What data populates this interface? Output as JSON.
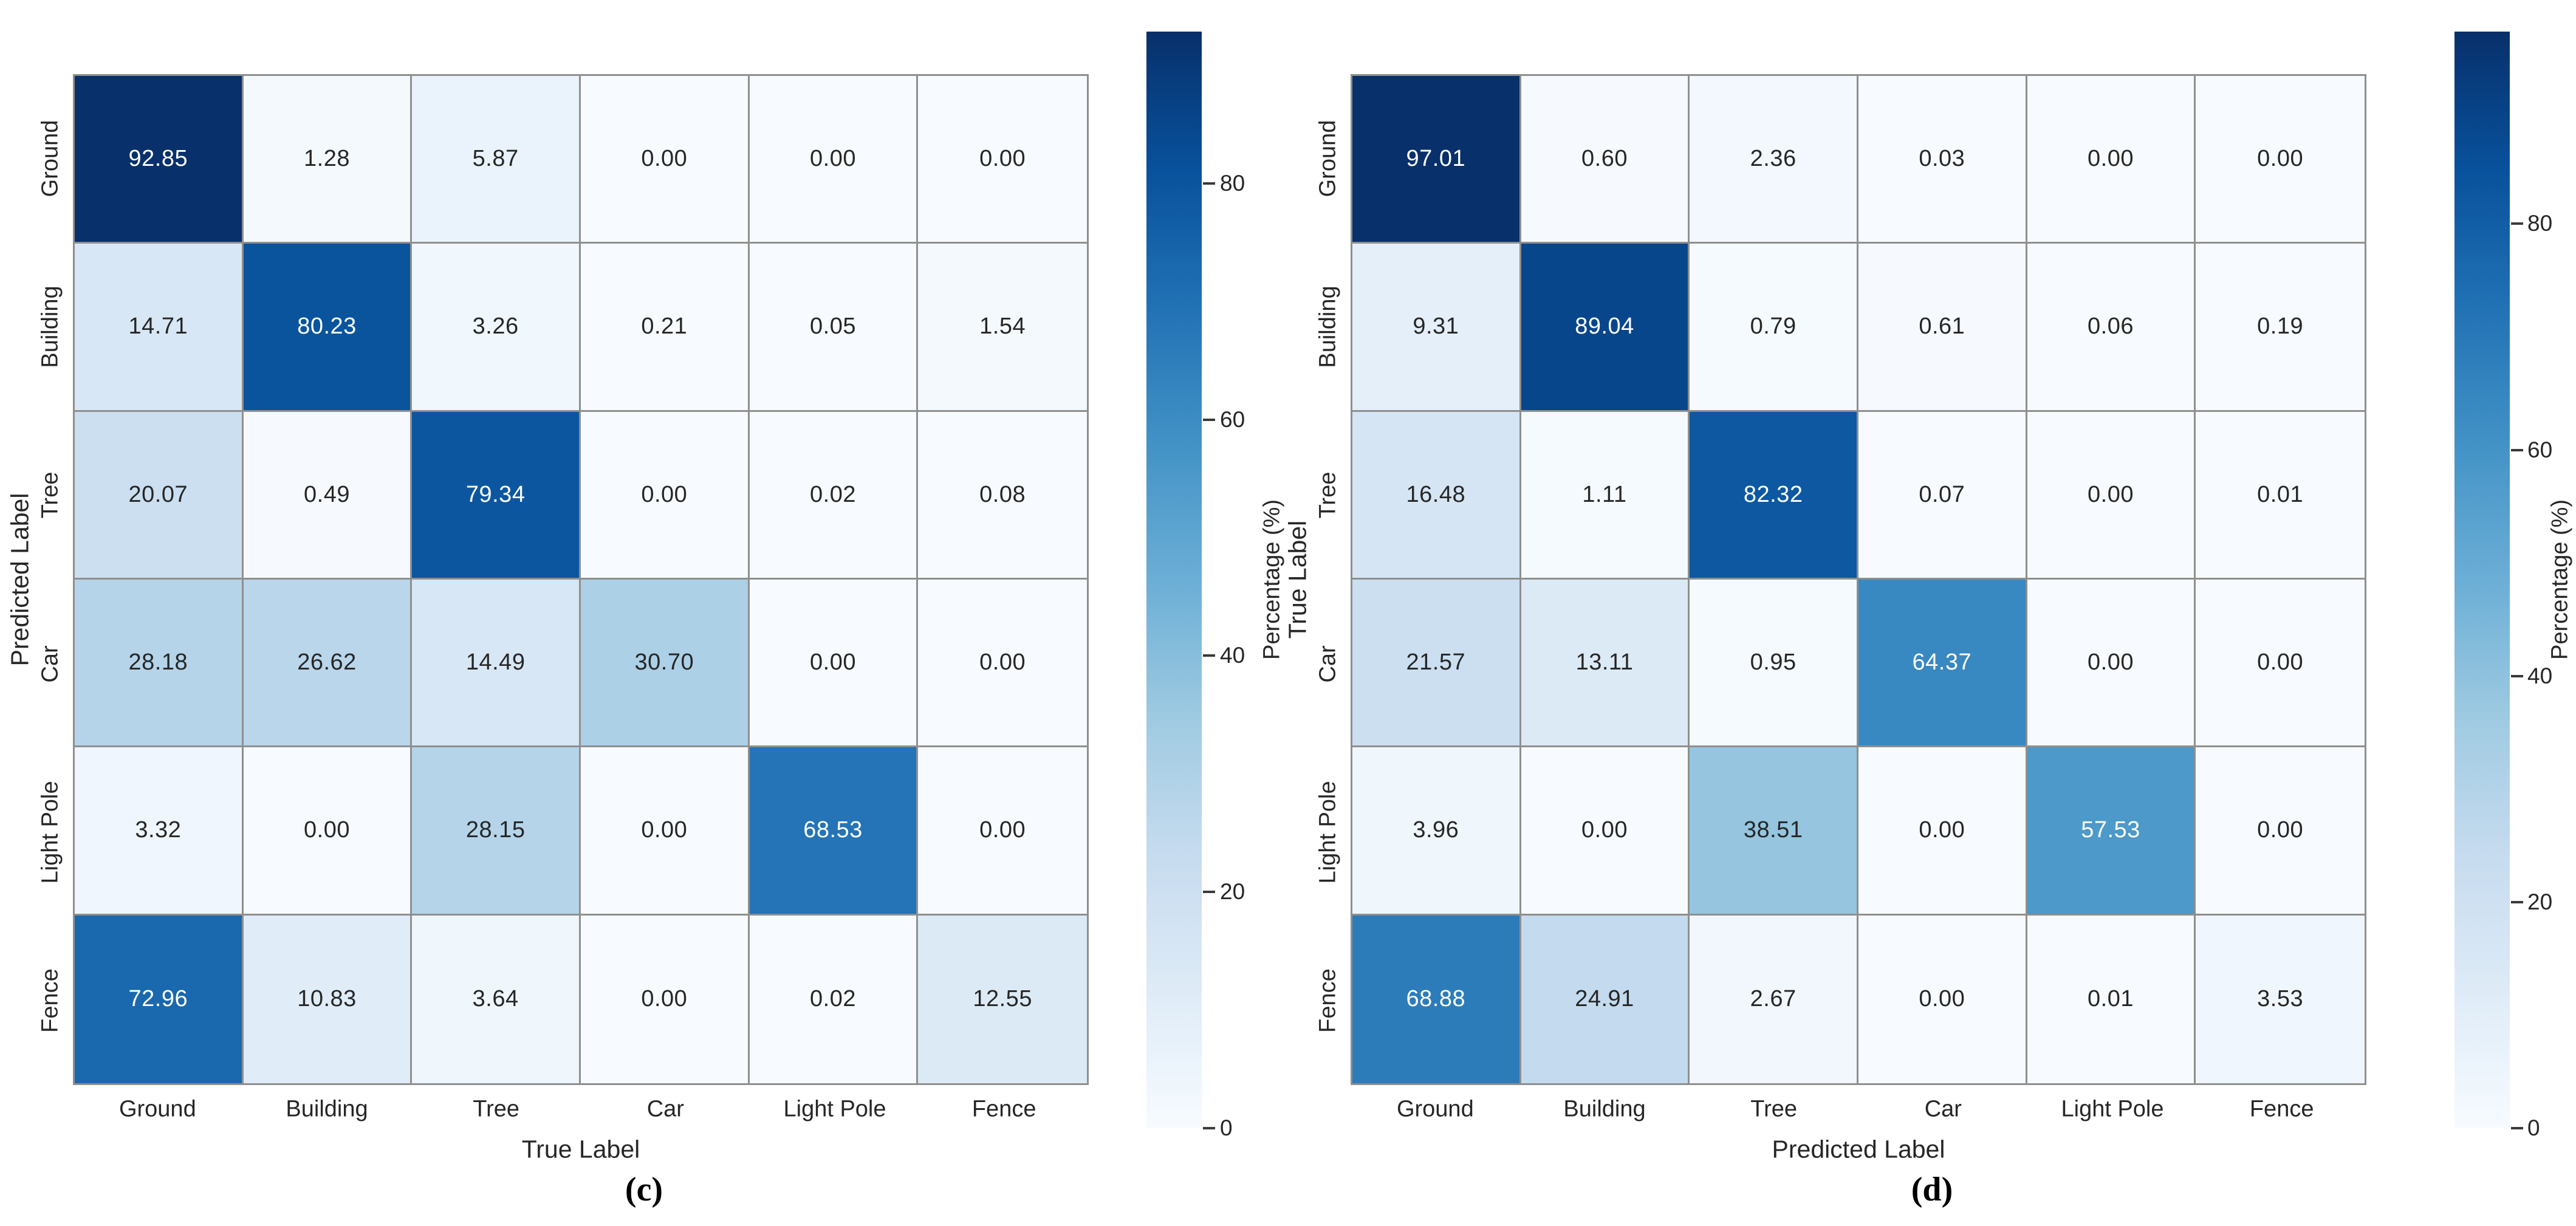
{
  "colors": {
    "figure_background": "#ffffff",
    "grid_line": "#8f8f8f",
    "annotation_dark": "#262626",
    "annotation_light": "#ffffff",
    "colormap": "Blues",
    "colormap_low": "#f7fbff",
    "colormap_high": "#08306b"
  },
  "chart_data": [
    {
      "type": "heatmap",
      "caption": "(c)",
      "xlabel": "True Label",
      "ylabel": "Predicted Label",
      "colorbar_label": "Percentage (%)",
      "colorbar_ticks": [
        80,
        60,
        40,
        20,
        0
      ],
      "vmin": 0,
      "vmax": 92.85,
      "x_categories": [
        "Ground",
        "Building",
        "Tree",
        "Car",
        "Light Pole",
        "Fence"
      ],
      "y_categories": [
        "Ground",
        "Building",
        "Tree",
        "Car",
        "Light Pole",
        "Fence"
      ],
      "values": [
        [
          92.85,
          1.28,
          5.87,
          0.0,
          0.0,
          0.0
        ],
        [
          14.71,
          80.23,
          3.26,
          0.21,
          0.05,
          1.54
        ],
        [
          20.07,
          0.49,
          79.34,
          0.0,
          0.02,
          0.08
        ],
        [
          28.18,
          26.62,
          14.49,
          30.7,
          0.0,
          0.0
        ],
        [
          3.32,
          0.0,
          28.15,
          0.0,
          68.53,
          0.0
        ],
        [
          72.96,
          10.83,
          3.64,
          0.0,
          0.02,
          12.55
        ]
      ]
    },
    {
      "type": "heatmap",
      "caption": "(d)",
      "xlabel": "Predicted Label",
      "ylabel": "True Label",
      "colorbar_label": "Percentage (%)",
      "colorbar_ticks": [
        80,
        60,
        40,
        20,
        0
      ],
      "vmin": 0,
      "vmax": 97.01,
      "x_categories": [
        "Ground",
        "Building",
        "Tree",
        "Car",
        "Light Pole",
        "Fence"
      ],
      "y_categories": [
        "Ground",
        "Building",
        "Tree",
        "Car",
        "Light Pole",
        "Fence"
      ],
      "values": [
        [
          97.01,
          0.6,
          2.36,
          0.03,
          0.0,
          0.0
        ],
        [
          9.31,
          89.04,
          0.79,
          0.61,
          0.06,
          0.19
        ],
        [
          16.48,
          1.11,
          82.32,
          0.07,
          0.0,
          0.01
        ],
        [
          21.57,
          13.11,
          0.95,
          64.37,
          0.0,
          0.0
        ],
        [
          3.96,
          0.0,
          38.51,
          0.0,
          57.53,
          0.0
        ],
        [
          68.88,
          24.91,
          2.67,
          0.0,
          0.01,
          3.53
        ]
      ]
    }
  ]
}
